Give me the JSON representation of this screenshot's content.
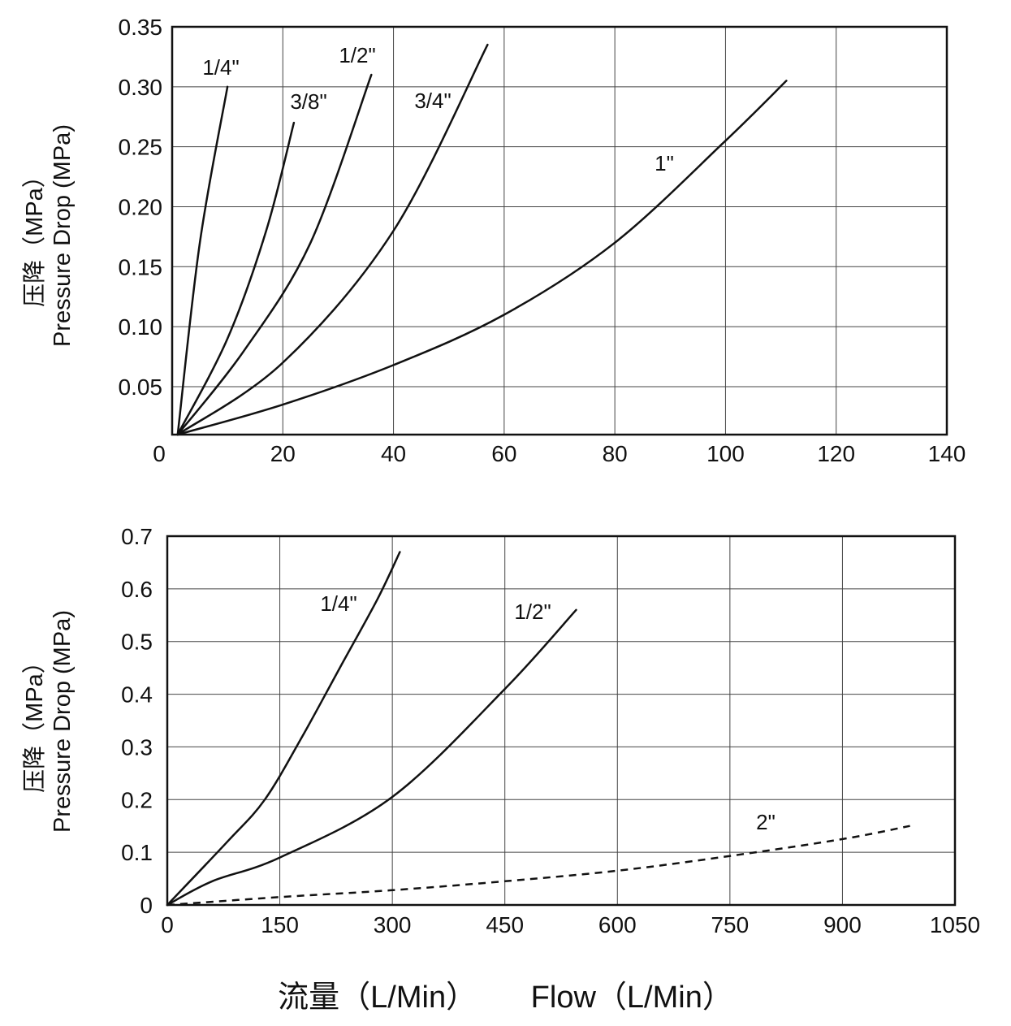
{
  "x_axis_label": {
    "cn": "流量（L/Min）",
    "en": "Flow（L/Min）"
  },
  "chart_data": [
    {
      "type": "line",
      "ylabel_cn": "压降（MPa）",
      "ylabel_en": "Pressure Drop (MPa)",
      "xlim": [
        0,
        140
      ],
      "ylim": [
        0.01,
        0.35
      ],
      "x_ticks": [
        0,
        20,
        40,
        60,
        80,
        100,
        120,
        140
      ],
      "x_tick_labels": [
        "0",
        "20",
        "40",
        "60",
        "80",
        "100",
        "120",
        "140"
      ],
      "y_ticks": [
        0.05,
        0.1,
        0.15,
        0.2,
        0.25,
        0.3,
        0.35
      ],
      "y_tick_labels": [
        "0.05",
        "0.10",
        "0.15",
        "0.20",
        "0.25",
        "0.30",
        "0.35"
      ],
      "grid": true,
      "series": [
        {
          "name": "1/4\"",
          "dashed": false,
          "x": [
            1,
            5,
            10
          ],
          "y": [
            0.01,
            0.17,
            0.3
          ]
        },
        {
          "name": "3/8\"",
          "dashed": false,
          "x": [
            1,
            10,
            17,
            22
          ],
          "y": [
            0.01,
            0.09,
            0.18,
            0.27
          ]
        },
        {
          "name": "1/2\"",
          "dashed": false,
          "x": [
            1,
            13,
            25,
            36
          ],
          "y": [
            0.01,
            0.08,
            0.17,
            0.31
          ]
        },
        {
          "name": "3/4\"",
          "dashed": false,
          "x": [
            1,
            20,
            40,
            57
          ],
          "y": [
            0.01,
            0.07,
            0.18,
            0.335
          ]
        },
        {
          "name": "1\"",
          "dashed": false,
          "x": [
            1,
            20,
            40,
            60,
            80,
            100,
            111
          ],
          "y": [
            0.01,
            0.035,
            0.068,
            0.11,
            0.17,
            0.255,
            0.305
          ]
        }
      ]
    },
    {
      "type": "line",
      "ylabel_cn": "压降（MPa）",
      "ylabel_en": "Pressure Drop (MPa)",
      "xlim": [
        0,
        1050
      ],
      "ylim": [
        0,
        0.7
      ],
      "x_ticks": [
        0,
        150,
        300,
        450,
        600,
        750,
        900,
        1050
      ],
      "x_tick_labels": [
        "0",
        "150",
        "300",
        "450",
        "600",
        "750",
        "900",
        "1050"
      ],
      "y_ticks": [
        0,
        0.1,
        0.2,
        0.3,
        0.4,
        0.5,
        0.6,
        0.7
      ],
      "y_tick_labels": [
        "0",
        "0.1",
        "0.2",
        "0.3",
        "0.4",
        "0.5",
        "0.6",
        "0.7"
      ],
      "grid": true,
      "series": [
        {
          "name": "1/4\"",
          "dashed": false,
          "x": [
            0,
            80,
            130,
            180,
            230,
            280,
            310
          ],
          "y": [
            0,
            0.12,
            0.2,
            0.32,
            0.45,
            0.58,
            0.67
          ]
        },
        {
          "name": "1/2\"",
          "dashed": false,
          "x": [
            0,
            60,
            150,
            300,
            450,
            545
          ],
          "y": [
            0,
            0.045,
            0.09,
            0.205,
            0.41,
            0.56
          ]
        },
        {
          "name": "2\"",
          "dashed": true,
          "x": [
            0,
            150,
            300,
            450,
            600,
            750,
            900,
            990
          ],
          "y": [
            0,
            0.015,
            0.028,
            0.045,
            0.065,
            0.093,
            0.125,
            0.15
          ]
        }
      ]
    }
  ]
}
